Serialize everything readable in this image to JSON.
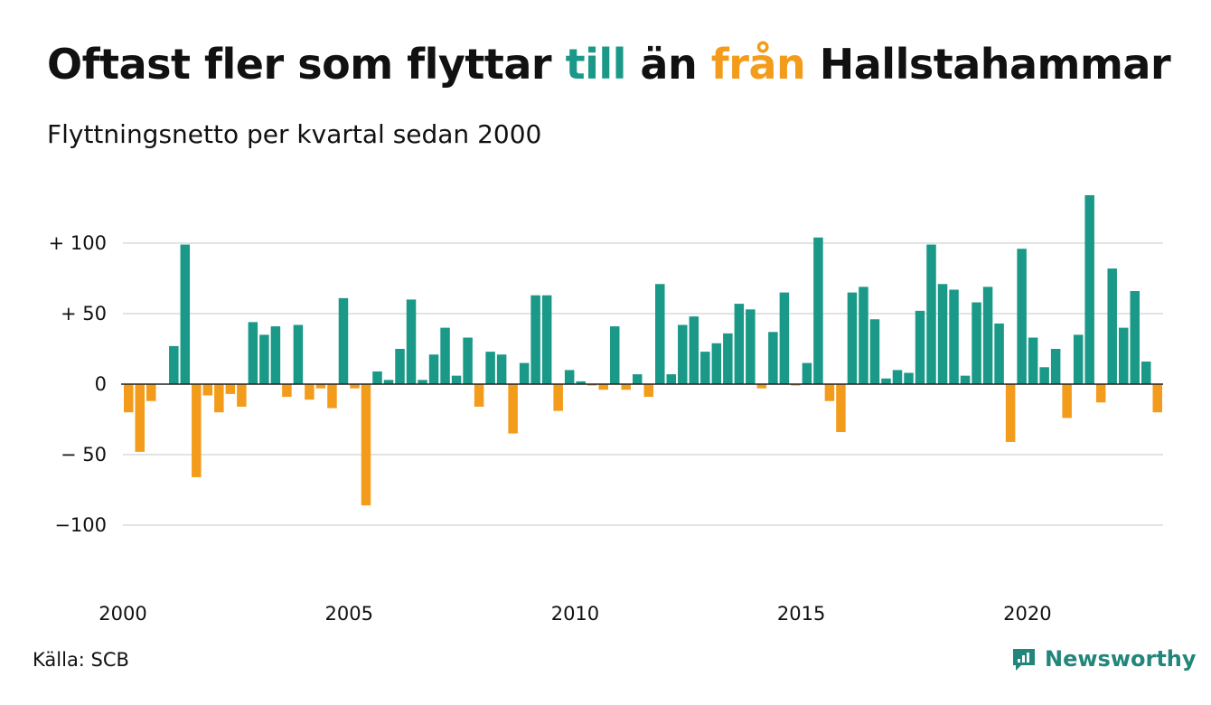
{
  "header": {
    "title_parts": [
      {
        "text": "Oftast fler som flyttar ",
        "color": "#111111"
      },
      {
        "text": "till",
        "color": "#1a9988"
      },
      {
        "text": " än ",
        "color": "#111111"
      },
      {
        "text": "från",
        "color": "#f39c1b"
      },
      {
        "text": " Hallstahammar",
        "color": "#111111"
      }
    ],
    "subtitle": "Flyttningsnetto per kvartal sedan 2000"
  },
  "footer": {
    "source": "Källa: SCB",
    "brand": "Newsworthy",
    "brand_icon": "newsworthy-logo-icon",
    "brand_color": "#22867a"
  },
  "colors": {
    "positive": "#1a9988",
    "negative": "#f39c1b",
    "grid": "#e3e3e3",
    "zero_line": "#222222"
  },
  "chart_data": {
    "type": "bar",
    "title": "Oftast fler som flyttar till än från Hallstahammar",
    "subtitle": "Flyttningsnetto per kvartal sedan 2000",
    "x_start_year": 2000,
    "periods_per_year": 4,
    "x_tick_labels": [
      "2000",
      "2005",
      "2010",
      "2015",
      "2020"
    ],
    "y_ticks": [
      {
        "value": 100,
        "label": "+ 100"
      },
      {
        "value": 50,
        "label": "+  50"
      },
      {
        "value": 0,
        "label": "0"
      },
      {
        "value": -50,
        "label": "− 50"
      },
      {
        "value": -100,
        "label": "−100"
      }
    ],
    "ylim": [
      -135,
      138
    ],
    "grid": true,
    "values": [
      -20,
      -48,
      -12,
      0,
      27,
      99,
      -66,
      -8,
      -20,
      -7,
      -16,
      44,
      35,
      41,
      -9,
      42,
      -11,
      -3,
      -17,
      61,
      -3,
      -86,
      9,
      3,
      25,
      60,
      3,
      21,
      40,
      6,
      33,
      -16,
      23,
      21,
      -35,
      15,
      63,
      63,
      -19,
      10,
      2,
      -1,
      -4,
      41,
      -4,
      7,
      -9,
      71,
      7,
      42,
      48,
      23,
      29,
      36,
      57,
      53,
      -3,
      37,
      65,
      -1,
      15,
      104,
      -12,
      -34,
      65,
      69,
      46,
      4,
      10,
      8,
      52,
      99,
      71,
      67,
      6,
      58,
      69,
      43,
      -41,
      96,
      33,
      12,
      25,
      -24,
      35,
      134,
      -13,
      82,
      40,
      66,
      16,
      -20
    ]
  }
}
